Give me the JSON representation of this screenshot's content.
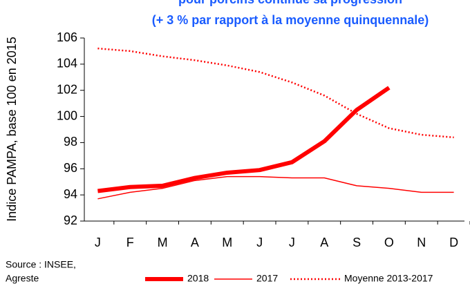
{
  "chart_data": {
    "type": "line",
    "title": [
      "pour porcins continue sa progression",
      "(+ 3 % par rapport à la moyenne quinquennale)"
    ],
    "ylabel": "Indice PAMPA, base 100 en 2015",
    "source": [
      "Source : INSEE,",
      "Agreste"
    ],
    "categories": [
      "J",
      "F",
      "M",
      "A",
      "M",
      "J",
      "J",
      "A",
      "S",
      "O",
      "N",
      "D"
    ],
    "series": [
      {
        "name": "2018",
        "color": "#ff0000",
        "width": 6,
        "dash": "none",
        "values": [
          94.3,
          94.6,
          94.7,
          95.3,
          95.7,
          95.9,
          96.5,
          98.1,
          100.5,
          102.2,
          null,
          null
        ]
      },
      {
        "name": "2017",
        "color": "#ff0000",
        "width": 1.5,
        "dash": "none",
        "values": [
          93.7,
          94.2,
          94.5,
          95.1,
          95.4,
          95.4,
          95.3,
          95.3,
          94.7,
          94.5,
          94.2,
          94.2
        ]
      },
      {
        "name": "Moyenne 2013-2017",
        "color": "#ff0000",
        "width": 2.5,
        "dash": "2 3",
        "values": [
          105.2,
          105.0,
          104.6,
          104.3,
          103.9,
          103.4,
          102.6,
          101.6,
          100.2,
          99.1,
          98.6,
          98.4
        ]
      }
    ],
    "ylim": [
      92,
      106
    ],
    "yticks": [
      92,
      94,
      96,
      98,
      100,
      102,
      104,
      106
    ],
    "grid": false
  }
}
